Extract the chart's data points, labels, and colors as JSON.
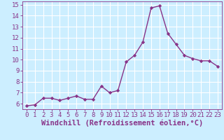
{
  "x": [
    0,
    1,
    2,
    3,
    4,
    5,
    6,
    7,
    8,
    9,
    10,
    11,
    12,
    13,
    14,
    15,
    16,
    17,
    18,
    19,
    20,
    21,
    22,
    23
  ],
  "y": [
    5.8,
    5.9,
    6.5,
    6.5,
    6.3,
    6.5,
    6.7,
    6.4,
    6.4,
    7.6,
    7.0,
    7.2,
    9.8,
    10.4,
    11.6,
    14.7,
    14.9,
    12.4,
    11.4,
    10.4,
    10.1,
    9.9,
    9.9,
    9.4
  ],
  "line_color": "#883388",
  "marker": "D",
  "marker_size": 2.2,
  "bg_color": "#cceeff",
  "grid_color": "#ffffff",
  "xlabel": "Windchill (Refroidissement éolien,°C)",
  "ylabel": "",
  "ylim": [
    5.5,
    15.3
  ],
  "xlim": [
    -0.5,
    23.5
  ],
  "yticks": [
    6,
    7,
    8,
    9,
    10,
    11,
    12,
    13,
    14,
    15
  ],
  "xticks": [
    0,
    1,
    2,
    3,
    4,
    5,
    6,
    7,
    8,
    9,
    10,
    11,
    12,
    13,
    14,
    15,
    16,
    17,
    18,
    19,
    20,
    21,
    22,
    23
  ],
  "tick_color": "#883388",
  "axis_label_color": "#883388",
  "tick_fontsize": 6.5,
  "xlabel_fontsize": 7.5,
  "linewidth": 1.0
}
